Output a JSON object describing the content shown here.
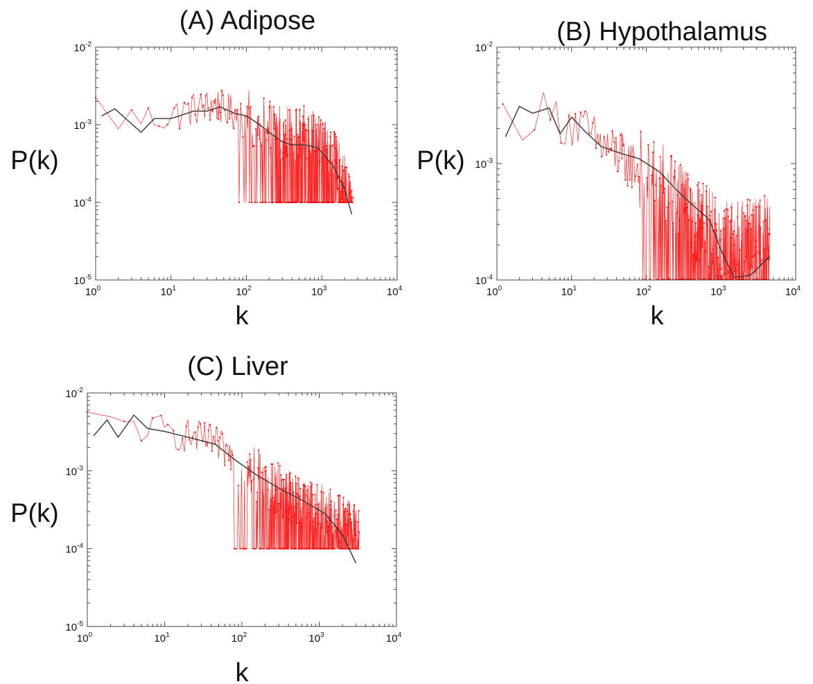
{
  "chart_data": [
    {
      "type": "line",
      "title": "(A) Adipose",
      "xlabel": "k",
      "ylabel": "P(k)",
      "xscale": "log",
      "yscale": "log",
      "xlim": [
        1,
        10000
      ],
      "ylim": [
        1e-05,
        0.01
      ],
      "x_tick_labels": [
        {
          "base": "10",
          "exp": "0"
        },
        {
          "base": "10",
          "exp": "1"
        },
        {
          "base": "10",
          "exp": "2"
        },
        {
          "base": "10",
          "exp": "3"
        },
        {
          "base": "10",
          "exp": "4"
        }
      ],
      "y_tick_labels": [
        {
          "base": "10",
          "exp": "-5"
        },
        {
          "base": "10",
          "exp": "-4"
        },
        {
          "base": "10",
          "exp": "-3"
        },
        {
          "base": "10",
          "exp": "-2"
        }
      ],
      "series": [
        {
          "color": "#ff0000",
          "style": "noisy-line-markers",
          "noise_floor": 0.0001,
          "envelope": [
            [
              1,
              0.0018
            ],
            [
              2,
              0.0012
            ],
            [
              5,
              0.0012
            ],
            [
              10,
              0.0013
            ],
            [
              20,
              0.0016
            ],
            [
              40,
              0.0018
            ],
            [
              60,
              0.0015
            ],
            [
              100,
              0.0013
            ],
            [
              200,
              0.0009
            ],
            [
              400,
              0.00075
            ],
            [
              700,
              0.0008
            ],
            [
              1000,
              0.0006
            ],
            [
              1500,
              0.00035
            ],
            [
              2600,
              0.0001
            ]
          ]
        },
        {
          "color": "#333333",
          "style": "line",
          "points": [
            [
              1.2,
              0.0013
            ],
            [
              1.8,
              0.0016
            ],
            [
              2.5,
              0.0012
            ],
            [
              4,
              0.0008
            ],
            [
              6,
              0.0012
            ],
            [
              10,
              0.0012
            ],
            [
              20,
              0.0015
            ],
            [
              30,
              0.0015
            ],
            [
              45,
              0.0017
            ],
            [
              70,
              0.0014
            ],
            [
              100,
              0.0013
            ],
            [
              150,
              0.001
            ],
            [
              200,
              0.0008
            ],
            [
              300,
              0.0006
            ],
            [
              400,
              0.00055
            ],
            [
              600,
              0.00055
            ],
            [
              900,
              0.0005
            ],
            [
              1400,
              0.0003
            ],
            [
              2000,
              0.00015
            ],
            [
              2500,
              7e-05
            ]
          ]
        }
      ]
    },
    {
      "type": "line",
      "title": "(B) Hypothalamus",
      "xlabel": "k",
      "ylabel": "P(k)",
      "xscale": "log",
      "yscale": "log",
      "xlim": [
        1,
        10000
      ],
      "ylim": [
        0.0001,
        0.01
      ],
      "x_tick_labels": [
        {
          "base": "10",
          "exp": "0"
        },
        {
          "base": "10",
          "exp": "1"
        },
        {
          "base": "10",
          "exp": "2"
        },
        {
          "base": "10",
          "exp": "3"
        },
        {
          "base": "10",
          "exp": "4"
        }
      ],
      "y_tick_labels": [
        {
          "base": "10",
          "exp": "-4"
        },
        {
          "base": "10",
          "exp": "-3"
        },
        {
          "base": "10",
          "exp": "-2"
        }
      ],
      "series": [
        {
          "color": "#ff0000",
          "style": "noisy-line-markers",
          "noise_floor": 0.0001,
          "envelope": [
            [
              1.2,
              0.0025
            ],
            [
              2,
              0.0026
            ],
            [
              3,
              0.0028
            ],
            [
              5,
              0.0025
            ],
            [
              10,
              0.0023
            ],
            [
              20,
              0.0016
            ],
            [
              40,
              0.0012
            ],
            [
              80,
              0.0009
            ],
            [
              150,
              0.0007
            ],
            [
              250,
              0.0005
            ],
            [
              400,
              0.00035
            ],
            [
              700,
              0.00028
            ],
            [
              1000,
              0.00022
            ],
            [
              2000,
              0.00022
            ],
            [
              4500,
              0.00025
            ]
          ]
        },
        {
          "color": "#333333",
          "style": "line",
          "points": [
            [
              1.3,
              0.0017
            ],
            [
              2,
              0.0031
            ],
            [
              3,
              0.0027
            ],
            [
              5,
              0.003
            ],
            [
              7,
              0.0018
            ],
            [
              10,
              0.0025
            ],
            [
              15,
              0.0019
            ],
            [
              25,
              0.0014
            ],
            [
              50,
              0.0012
            ],
            [
              80,
              0.0011
            ],
            [
              150,
              0.00085
            ],
            [
              250,
              0.0006
            ],
            [
              400,
              0.00045
            ],
            [
              700,
              0.00033
            ],
            [
              1000,
              0.00018
            ],
            [
              1500,
              0.000105
            ],
            [
              2500,
              0.00011
            ],
            [
              4500,
              0.00016
            ]
          ]
        }
      ]
    },
    {
      "type": "line",
      "title": "(C) Liver",
      "xlabel": "k",
      "ylabel": "P(k)",
      "xscale": "log",
      "yscale": "log",
      "xlim": [
        1,
        10000
      ],
      "ylim": [
        1e-05,
        0.01
      ],
      "x_tick_labels": [
        {
          "base": "10",
          "exp": "0"
        },
        {
          "base": "10",
          "exp": "1"
        },
        {
          "base": "10",
          "exp": "2"
        },
        {
          "base": "10",
          "exp": "3"
        },
        {
          "base": "10",
          "exp": "4"
        }
      ],
      "y_tick_labels": [
        {
          "base": "10",
          "exp": "-5"
        },
        {
          "base": "10",
          "exp": "-4"
        },
        {
          "base": "10",
          "exp": "-3"
        },
        {
          "base": "10",
          "exp": "-2"
        }
      ],
      "series": [
        {
          "color": "#ff0000",
          "style": "noisy-line-markers",
          "noise_floor": 0.0001,
          "envelope": [
            [
              1,
              0.0042
            ],
            [
              2,
              0.0036
            ],
            [
              4,
              0.0042
            ],
            [
              6,
              0.0033
            ],
            [
              10,
              0.0032
            ],
            [
              20,
              0.0028
            ],
            [
              40,
              0.0024
            ],
            [
              80,
              0.0015
            ],
            [
              150,
              0.0009
            ],
            [
              300,
              0.0006
            ],
            [
              600,
              0.0004
            ],
            [
              1000,
              0.00033
            ],
            [
              2000,
              0.00022
            ],
            [
              3300,
              0.00015
            ]
          ]
        },
        {
          "color": "#333333",
          "style": "line",
          "points": [
            [
              1.2,
              0.0028
            ],
            [
              1.8,
              0.0045
            ],
            [
              2.5,
              0.0027
            ],
            [
              4,
              0.0052
            ],
            [
              6,
              0.0035
            ],
            [
              10,
              0.0032
            ],
            [
              20,
              0.0027
            ],
            [
              45,
              0.0022
            ],
            [
              80,
              0.0014
            ],
            [
              150,
              0.0009
            ],
            [
              300,
              0.0006
            ],
            [
              600,
              0.00042
            ],
            [
              1200,
              0.00028
            ],
            [
              2000,
              0.00015
            ],
            [
              3000,
              6.5e-05
            ]
          ]
        }
      ]
    }
  ]
}
